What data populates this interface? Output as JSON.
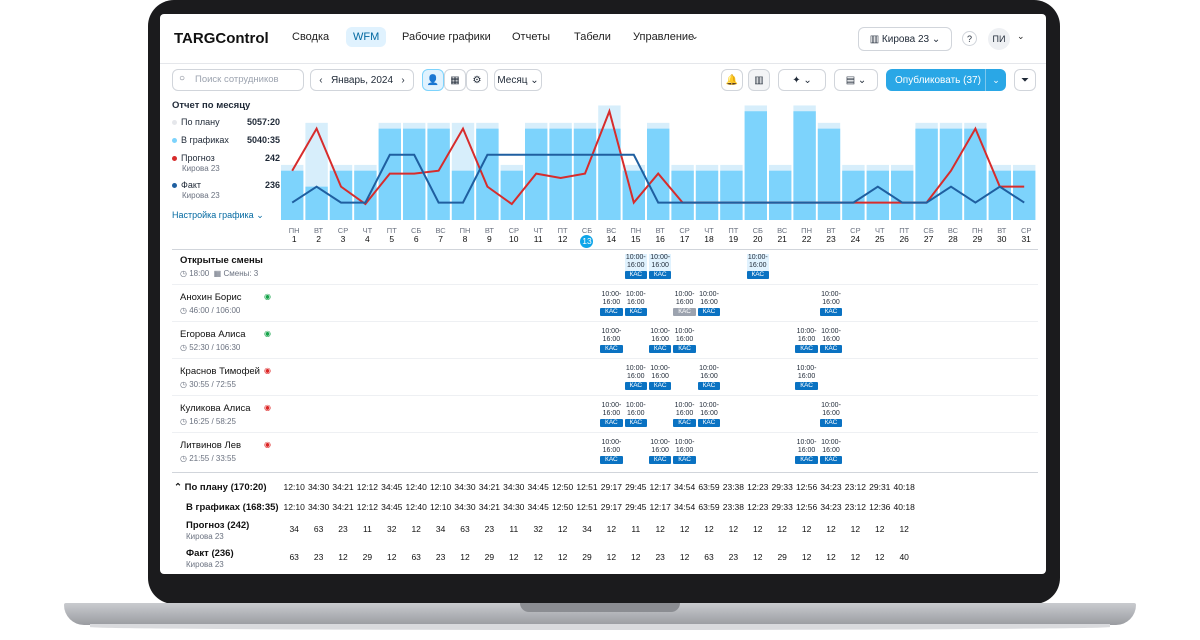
{
  "app": {
    "logo": "TARGControl"
  },
  "nav": [
    {
      "label": "Сводка"
    },
    {
      "label": "WFM"
    },
    {
      "label": "Рабочие графики"
    },
    {
      "label": "Отчеты"
    },
    {
      "label": "Табели"
    },
    {
      "label": "Управление"
    }
  ],
  "store": {
    "label": "Кирова 23"
  },
  "user": {
    "initials": "ПИ"
  },
  "toolbar": {
    "search_placeholder": "Поиск сотрудников",
    "period": "Январь, 2024",
    "view": "Месяц",
    "publish": "Опубликовать (37)"
  },
  "report": {
    "title": "Отчет по месяцу",
    "plan_label": "По плану",
    "plan_value": "5057:20",
    "sched_label": "В графиках",
    "sched_value": "5040:35",
    "forecast_label": "Прогноз",
    "forecast_value": "242",
    "forecast_sub": "Кирова 23",
    "fact_label": "Факт",
    "fact_value": "236",
    "fact_sub": "Кирова 23",
    "settings": "Настройка графика"
  },
  "colors": {
    "accent": "#2aa7e6",
    "forecast": "#d72c2c",
    "fact": "#1f5fa0",
    "bar": "#7dd3fc",
    "bar_light": "#d7eefb"
  },
  "chart_data": {
    "type": "bar",
    "categories": [
      "1",
      "2",
      "3",
      "4",
      "5",
      "6",
      "7",
      "8",
      "9",
      "10",
      "11",
      "12",
      "13",
      "14",
      "15",
      "16",
      "17",
      "18",
      "19",
      "20",
      "21",
      "22",
      "23",
      "24",
      "25",
      "26",
      "27",
      "28",
      "29",
      "30",
      "31"
    ],
    "series": [
      {
        "name": "В графиках",
        "values": [
          34,
          23,
          34,
          34,
          63,
          63,
          63,
          34,
          63,
          34,
          63,
          63,
          63,
          63,
          34,
          63,
          34,
          34,
          34,
          75,
          34,
          75,
          63,
          34,
          34,
          34,
          63,
          63,
          63,
          34,
          34
        ]
      },
      {
        "name": "Прогноз",
        "values": [
          34,
          63,
          23,
          11,
          32,
          32,
          34,
          63,
          23,
          11,
          32,
          29,
          32,
          75,
          12,
          32,
          12,
          12,
          12,
          12,
          12,
          12,
          12,
          12,
          12,
          12,
          12,
          34,
          63,
          23,
          23
        ]
      },
      {
        "name": "Факт",
        "values": [
          12,
          23,
          12,
          12,
          45,
          45,
          12,
          12,
          45,
          45,
          45,
          45,
          45,
          45,
          45,
          12,
          12,
          12,
          12,
          12,
          12,
          12,
          12,
          12,
          23,
          12,
          12,
          23,
          12,
          23,
          12
        ]
      }
    ]
  },
  "weekdays": [
    "ПН",
    "ВТ",
    "СР",
    "ЧТ",
    "ПТ",
    "СБ",
    "ВС",
    "ПН",
    "ВТ",
    "СР",
    "ЧТ",
    "ПТ",
    "СБ",
    "ВС",
    "ПН",
    "ВТ",
    "СР",
    "ЧТ",
    "ПТ",
    "СБ",
    "ВС",
    "ПН",
    "ВТ",
    "СР",
    "ЧТ",
    "ПТ",
    "СБ",
    "ВС",
    "ПН",
    "ВТ",
    "СР"
  ],
  "open_shifts": {
    "title": "Открытые смены",
    "time": "18:00",
    "count": "Смены: 3"
  },
  "employees": [
    {
      "name": "Анохин Борис",
      "hours": "46:00 / 106:00"
    },
    {
      "name": "Егорова Алиса",
      "hours": "52:30 / 106:30"
    },
    {
      "name": "Краснов Тимофей",
      "hours": "30:55 / 72:55"
    },
    {
      "name": "Куликова Алиса",
      "hours": "16:25 / 58:25"
    },
    {
      "name": "Литвинов Лев",
      "hours": "21:55 / 33:55"
    }
  ],
  "summary": {
    "plan_label": "По плану (170:20)",
    "sched_label": "В графиках (168:35)",
    "forecast_label": "Прогноз (242)",
    "forecast_sub": "Кирова 23",
    "fact_label": "Факт (236)",
    "fact_sub": "Кирова 23",
    "plan": [
      "12:10",
      "34:30",
      "34:21",
      "12:12",
      "34:45",
      "12:40",
      "12:10",
      "34:30",
      "34:21",
      "34:30",
      "34:45",
      "12:50",
      "12:51",
      "29:17",
      "29:45",
      "12:17",
      "34:54",
      "63:59",
      "23:38",
      "12:23",
      "29:33",
      "12:56",
      "34:23",
      "23:12",
      "29:31",
      "40:18",
      "",
      "",
      "",
      "",
      ""
    ],
    "sched": [
      "12:10",
      "34:30",
      "34:21",
      "12:12",
      "34:45",
      "12:40",
      "12:10",
      "34:30",
      "34:21",
      "34:30",
      "34:45",
      "12:50",
      "12:51",
      "29:17",
      "29:45",
      "12:17",
      "34:54",
      "63:59",
      "23:38",
      "12:23",
      "29:33",
      "12:56",
      "34:23",
      "23:12",
      "12:36",
      "40:18",
      "",
      "",
      "",
      "",
      ""
    ],
    "forecast": [
      "34",
      "63",
      "23",
      "11",
      "32",
      "12",
      "34",
      "63",
      "23",
      "11",
      "32",
      "12",
      "34",
      "12",
      "11",
      "12",
      "12",
      "12",
      "12",
      "12",
      "12",
      "12",
      "12",
      "12",
      "12",
      "12",
      "",
      "",
      "",
      "",
      ""
    ],
    "fact": [
      "63",
      "23",
      "12",
      "29",
      "12",
      "63",
      "23",
      "12",
      "29",
      "12",
      "12",
      "12",
      "29",
      "12",
      "12",
      "23",
      "12",
      "63",
      "23",
      "12",
      "29",
      "12",
      "12",
      "12",
      "12",
      "40",
      "",
      "",
      "",
      "",
      ""
    ]
  }
}
